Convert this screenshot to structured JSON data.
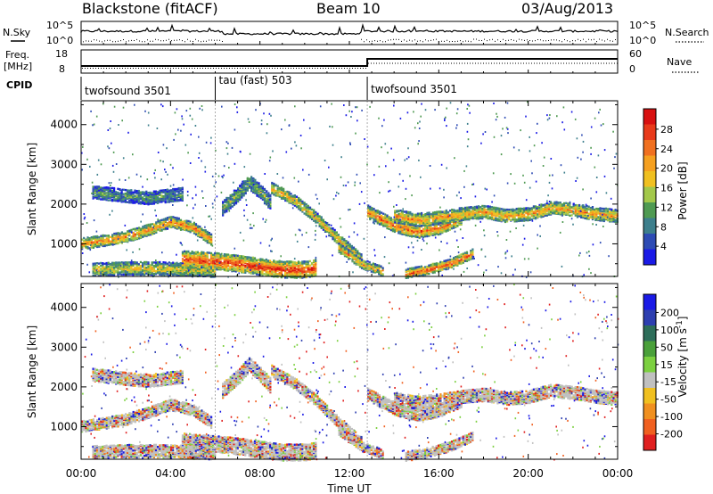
{
  "header": {
    "station": "Blackstone (fitACF)",
    "beam": "Beam 10",
    "date": "03/Aug/2013"
  },
  "panels": {
    "nsky": {
      "label": "N.Sky",
      "tick_top": "10^5",
      "tick_bottom": "10^0"
    },
    "nsearch": {
      "label": "N.Search",
      "tick_top": "10^5",
      "tick_bottom": "10^0"
    },
    "freq": {
      "label_line1": "Freq.",
      "label_line2": "[MHz]",
      "tick_top": "18",
      "tick_bottom": "8"
    },
    "nave": {
      "label": "Nave",
      "tick_top": "60",
      "tick_bottom": "0"
    },
    "cpid": {
      "label": "CPID",
      "segments": [
        {
          "name": "twofsound 3501",
          "start_hour": 0,
          "end_hour": 6
        },
        {
          "name": "tau (fast) 503",
          "start_hour": 6,
          "end_hour": 12.8
        },
        {
          "name": "twofsound 3501",
          "start_hour": 12.8,
          "end_hour": 24
        }
      ]
    }
  },
  "chart_data": [
    {
      "type": "heatmap",
      "name": "power",
      "ylabel": "Slant Range [km]",
      "ylim": [
        180,
        4600
      ],
      "yticks": [
        "1000",
        "2000",
        "3000",
        "4000"
      ],
      "xlim": [
        0,
        24
      ],
      "colorbar": {
        "label": "Power [dB]",
        "ticks": [
          "4",
          "8",
          "12",
          "16",
          "20",
          "24",
          "28"
        ],
        "colors": [
          "#1a1ae6",
          "#2d4bb4",
          "#3d7f8c",
          "#4f9a52",
          "#a3c84a",
          "#f0c020",
          "#f5a020",
          "#f07020",
          "#e83a1a",
          "#d81010"
        ]
      },
      "bands": [
        {
          "t": [
            0,
            1,
            2,
            3,
            4,
            5,
            5.8
          ],
          "r": [
            1000,
            1080,
            1180,
            1350,
            1550,
            1400,
            1100
          ],
          "w": 130,
          "level": 0.75
        },
        {
          "t": [
            0.5,
            2,
            3.5,
            5,
            6
          ],
          "r": [
            350,
            380,
            380,
            350,
            320
          ],
          "w": 150,
          "level": 0.55
        },
        {
          "t": [
            4.5,
            6,
            7,
            8,
            9,
            10,
            10.5
          ],
          "r": [
            620,
            560,
            500,
            420,
            350,
            350,
            400
          ],
          "w": 190,
          "level": 0.95
        },
        {
          "t": [
            6.3,
            7,
            7.5,
            8,
            8.5
          ],
          "r": [
            1900,
            2250,
            2550,
            2300,
            2000
          ],
          "w": 170,
          "level": 0.4
        },
        {
          "t": [
            8.5,
            9.5,
            10.5,
            11.5,
            12.5
          ],
          "r": [
            2400,
            2100,
            1650,
            1100,
            600
          ],
          "w": 140,
          "level": 0.65
        },
        {
          "t": [
            12.8,
            14,
            15,
            16,
            17
          ],
          "r": [
            1800,
            1450,
            1300,
            1400,
            1650
          ],
          "w": 150,
          "level": 0.8
        },
        {
          "t": [
            14,
            15,
            16,
            17,
            18,
            19,
            20,
            21,
            22,
            23,
            24
          ],
          "r": [
            1700,
            1600,
            1650,
            1750,
            1800,
            1700,
            1750,
            1900,
            1850,
            1750,
            1700
          ],
          "w": 160,
          "level": 0.7
        },
        {
          "t": [
            14.5,
            15.5,
            16.5,
            17.5
          ],
          "r": [
            250,
            350,
            500,
            750
          ],
          "w": 110,
          "level": 0.85
        },
        {
          "t": [
            0.5,
            2,
            3,
            4.5
          ],
          "r": [
            2300,
            2200,
            2150,
            2250
          ],
          "w": 160,
          "level": 0.3
        },
        {
          "t": [
            11.5,
            12.5,
            13.5
          ],
          "r": [
            900,
            500,
            300
          ],
          "w": 120,
          "level": 0.7
        }
      ]
    },
    {
      "type": "heatmap",
      "name": "velocity",
      "xlabel": "Time UT",
      "ylabel": "Slant Range [km]",
      "ylim": [
        180,
        4600
      ],
      "yticks": [
        "1000",
        "2000",
        "3000",
        "4000"
      ],
      "xlim": [
        0,
        24
      ],
      "xticks": [
        "00:00",
        "04:00",
        "08:00",
        "12:00",
        "16:00",
        "20:00",
        "00:00"
      ],
      "colorbar": {
        "label": "Velocity [m s^-1]",
        "ticks": [
          "200",
          "100",
          "50",
          "15",
          "-15",
          "-50",
          "-100",
          "-200"
        ],
        "colors": [
          "#1a1ae6",
          "#2e3fb0",
          "#2e6e5a",
          "#4aa03a",
          "#7cd040",
          "#c0c0c0",
          "#f0c020",
          "#f09020",
          "#f06020",
          "#e02020"
        ]
      },
      "bands": [
        {
          "t": [
            0,
            1,
            2,
            3,
            4,
            5,
            5.8
          ],
          "r": [
            1000,
            1080,
            1180,
            1350,
            1550,
            1400,
            1100
          ],
          "w": 130,
          "level": 0.5
        },
        {
          "t": [
            0.5,
            2,
            3.5,
            5,
            6
          ],
          "r": [
            350,
            380,
            380,
            350,
            320
          ],
          "w": 150,
          "level": 0.35
        },
        {
          "t": [
            4.5,
            6,
            7,
            8,
            9,
            10,
            10.5
          ],
          "r": [
            620,
            560,
            500,
            420,
            350,
            350,
            400
          ],
          "w": 190,
          "level": 0.55
        },
        {
          "t": [
            6.3,
            7,
            7.5,
            8,
            8.5
          ],
          "r": [
            1900,
            2250,
            2550,
            2300,
            2000
          ],
          "w": 170,
          "level": 0.3
        },
        {
          "t": [
            8.5,
            9.5,
            10.5,
            11.5,
            12.5
          ],
          "r": [
            2400,
            2100,
            1650,
            1100,
            600
          ],
          "w": 140,
          "level": 0.4
        },
        {
          "t": [
            12.8,
            14,
            15,
            16,
            17
          ],
          "r": [
            1800,
            1450,
            1300,
            1400,
            1650
          ],
          "w": 150,
          "level": 0.5
        },
        {
          "t": [
            14,
            15,
            16,
            17,
            18,
            19,
            20,
            21,
            22,
            23,
            24
          ],
          "r": [
            1700,
            1600,
            1650,
            1750,
            1800,
            1700,
            1750,
            1900,
            1850,
            1750,
            1700
          ],
          "w": 160,
          "level": 0.5
        },
        {
          "t": [
            14.5,
            15.5,
            16.5,
            17.5
          ],
          "r": [
            250,
            350,
            500,
            750
          ],
          "w": 110,
          "level": 0.5
        },
        {
          "t": [
            0.5,
            2,
            3,
            4.5
          ],
          "r": [
            2300,
            2200,
            2150,
            2250
          ],
          "w": 160,
          "level": 0.3
        },
        {
          "t": [
            11.5,
            12.5,
            13.5
          ],
          "r": [
            900,
            500,
            300
          ],
          "w": 120,
          "level": 0.5
        }
      ]
    }
  ]
}
